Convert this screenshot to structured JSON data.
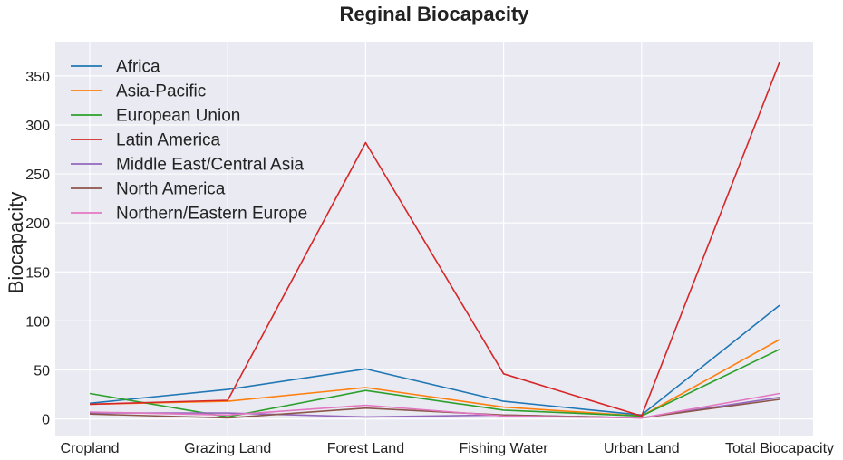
{
  "chart_data": {
    "type": "line",
    "title": "Reginal Biocapacity",
    "xlabel": "",
    "ylabel": "Biocapacity",
    "categories": [
      "Cropland",
      "Grazing Land",
      "Forest Land",
      "Fishing Water",
      "Urban Land",
      "Total Biocapacity"
    ],
    "ylim": [
      -17,
      385
    ],
    "yticks": [
      0,
      50,
      100,
      150,
      200,
      250,
      300,
      350
    ],
    "grid": true,
    "legend_position": "top-left",
    "series": [
      {
        "name": "Africa",
        "color": "#1f77b4",
        "values": [
          16,
          30,
          51,
          18,
          4,
          116
        ]
      },
      {
        "name": "Asia-Pacific",
        "color": "#ff7f0e",
        "values": [
          15,
          18,
          32,
          12,
          3,
          81
        ]
      },
      {
        "name": "European Union",
        "color": "#2ca02c",
        "values": [
          26,
          2,
          29,
          9,
          3,
          71
        ]
      },
      {
        "name": "Latin America",
        "color": "#d62728",
        "values": [
          15,
          19,
          282,
          46,
          3,
          364
        ]
      },
      {
        "name": "Middle East/Central Asia",
        "color": "#9467bd",
        "values": [
          6,
          6,
          2,
          4,
          1,
          22
        ]
      },
      {
        "name": "North America",
        "color": "#8c564b",
        "values": [
          5,
          1,
          11,
          4,
          1,
          20
        ]
      },
      {
        "name": "Northern/Eastern Europe",
        "color": "#e377c2",
        "values": [
          7,
          4,
          14,
          3,
          1,
          26
        ]
      }
    ]
  }
}
